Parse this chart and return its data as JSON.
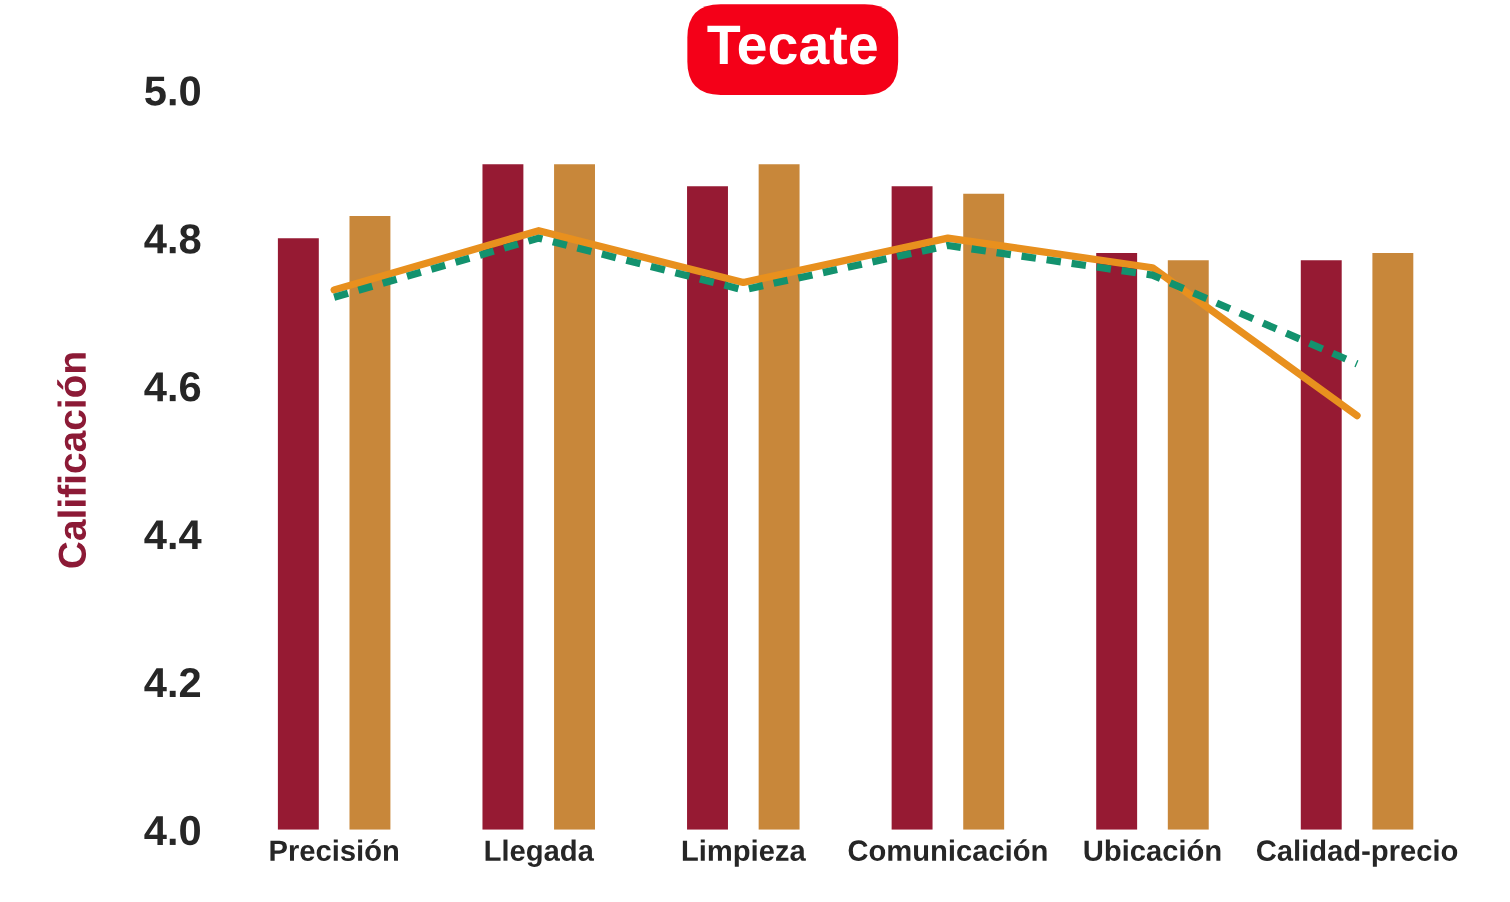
{
  "chart_data": {
    "type": "bar",
    "title": "Tecate",
    "ylabel": "Calificación",
    "categories": [
      "Precisión",
      "Llegada",
      "Limpieza",
      "Comunicación",
      "Ubicación",
      "Calidad-precio"
    ],
    "series": [
      {
        "color": "#961a33",
        "values": [
          4.8,
          4.9,
          4.87,
          4.87,
          4.78,
          4.77
        ]
      },
      {
        "color": "#c8873a",
        "values": [
          4.83,
          4.9,
          4.9,
          4.86,
          4.77,
          4.78
        ]
      },
      {
        "type": "line",
        "color": "#e8901e",
        "line_style": "solid",
        "values": [
          4.73,
          4.81,
          4.74,
          4.8,
          4.76,
          4.56
        ]
      },
      {
        "type": "line",
        "color": "#13926e",
        "line_style": "dashed",
        "values": [
          4.72,
          4.8,
          4.73,
          4.79,
          4.75,
          4.63
        ]
      }
    ],
    "ylim": [
      4.0,
      5.0
    ],
    "yticks": [
      {
        "value": 4,
        "label": "4.0"
      },
      4.2,
      4.4,
      4.6,
      4.8,
      {
        "value": 5,
        "label": "5.0"
      }
    ],
    "grid": false,
    "legend": false
  }
}
